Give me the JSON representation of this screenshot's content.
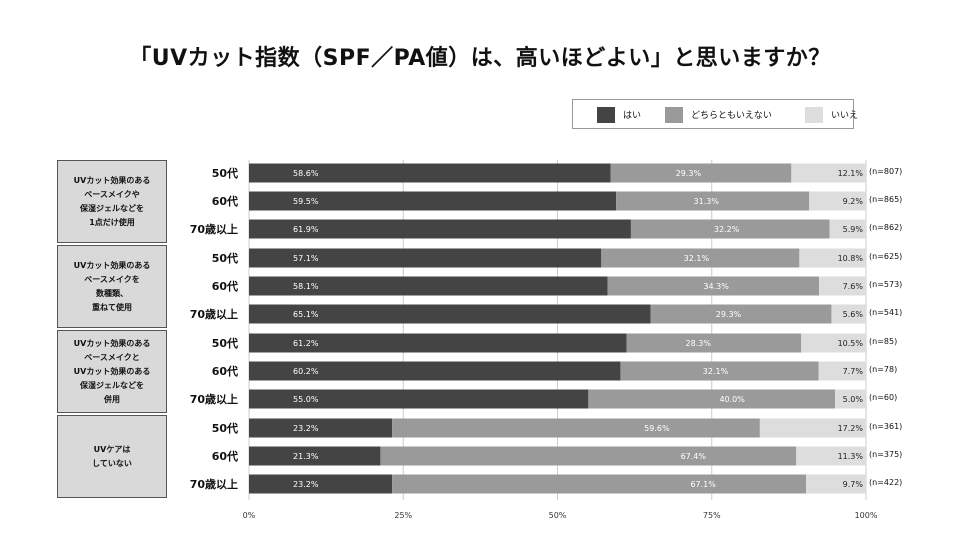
{
  "chart_data": {
    "type": "bar",
    "orientation": "horizontal",
    "stacked": true,
    "title": "「UVカット指数（SPF／PA値）は、高いほどよい」と思いますか？",
    "xlim": [
      0,
      100
    ],
    "x_ticks": [
      "0%",
      "25%",
      "50%",
      "75%",
      "100%"
    ],
    "legend": {
      "placement": "top-right",
      "entries": [
        "はい",
        "どちらともいえない",
        "いいえ"
      ]
    },
    "series_colors": [
      "#444444",
      "#9a9a9a",
      "#dddddd"
    ],
    "grid": true,
    "groups": [
      {
        "label": "UVカット効果のある\nベースメイクや\n保湿ジェルなどを\n1点だけ使用",
        "rows": [
          {
            "category": "50代",
            "values": [
              58.6,
              29.3,
              12.1
            ],
            "labels": [
              "58.6%",
              "29.3%",
              "12.1%"
            ],
            "n": "(n=807)"
          },
          {
            "category": "60代",
            "values": [
              59.5,
              31.3,
              9.2
            ],
            "labels": [
              "59.5%",
              "31.3%",
              "9.2%"
            ],
            "n": "(n=865)"
          },
          {
            "category": "70歳以上",
            "values": [
              61.9,
              32.2,
              5.9
            ],
            "labels": [
              "61.9%",
              "32.2%",
              "5.9%"
            ],
            "n": "(n=862)"
          }
        ]
      },
      {
        "label": "UVカット効果のある\nベースメイクを\n数種類、\n重ねて使用",
        "rows": [
          {
            "category": "50代",
            "values": [
              57.1,
              32.1,
              10.8
            ],
            "labels": [
              "57.1%",
              "32.1%",
              "10.8%"
            ],
            "n": "(n=625)"
          },
          {
            "category": "60代",
            "values": [
              58.1,
              34.3,
              7.6
            ],
            "labels": [
              "58.1%",
              "34.3%",
              "7.6%"
            ],
            "n": "(n=573)"
          },
          {
            "category": "70歳以上",
            "values": [
              65.1,
              29.3,
              5.6
            ],
            "labels": [
              "65.1%",
              "29.3%",
              "5.6%"
            ],
            "n": "(n=541)"
          }
        ]
      },
      {
        "label": "UVカット効果のある\nベースメイクと\nUVカット効果のある\n保湿ジェルなどを\n併用",
        "rows": [
          {
            "category": "50代",
            "values": [
              61.2,
              28.3,
              10.5
            ],
            "labels": [
              "61.2%",
              "28.3%",
              "10.5%"
            ],
            "n": "(n=85)"
          },
          {
            "category": "60代",
            "values": [
              60.2,
              32.1,
              7.7
            ],
            "labels": [
              "60.2%",
              "32.1%",
              "7.7%"
            ],
            "n": "(n=78)"
          },
          {
            "category": "70歳以上",
            "values": [
              55.0,
              40.0,
              5.0
            ],
            "labels": [
              "55.0%",
              "40.0%",
              "5.0%"
            ],
            "n": "(n=60)"
          }
        ]
      },
      {
        "label": "UVケアは\nしていない",
        "rows": [
          {
            "category": "50代",
            "values": [
              23.2,
              59.6,
              17.2
            ],
            "labels": [
              "23.2%",
              "59.6%",
              "17.2%"
            ],
            "n": "(n=361)"
          },
          {
            "category": "60代",
            "values": [
              21.3,
              67.4,
              11.3
            ],
            "labels": [
              "21.3%",
              "67.4%",
              "11.3%"
            ],
            "n": "(n=375)"
          },
          {
            "category": "70歳以上",
            "values": [
              23.2,
              67.1,
              9.7
            ],
            "labels": [
              "23.2%",
              "67.1%",
              "9.7%"
            ],
            "n": "(n=422)"
          }
        ]
      }
    ]
  }
}
